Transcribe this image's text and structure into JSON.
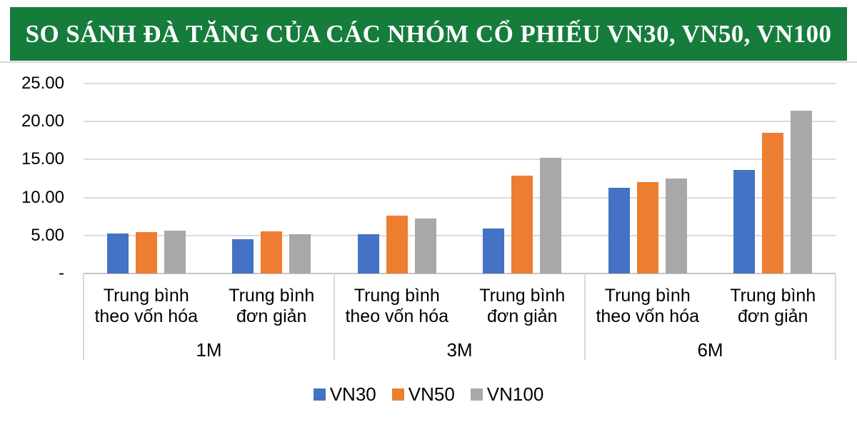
{
  "banner": {
    "title": "SO SÁNH ĐÀ TĂNG CỦA CÁC NHÓM CỔ PHIẾU VN30, VN50, VN100"
  },
  "chart_data": {
    "type": "bar",
    "title": "SO SÁNH ĐÀ TĂNG CỦA CÁC NHÓM CỔ PHIẾU VN30, VN50, VN100",
    "ylim": [
      0,
      25
    ],
    "ytick_labels": [
      "-",
      "5.00",
      "10.00",
      "15.00",
      "20.00",
      "25.00"
    ],
    "grid": true,
    "legend_position": "bottom",
    "period_labels": [
      "1M",
      "3M",
      "6M"
    ],
    "categories": [
      {
        "period": "1M",
        "label_lines": [
          "Trung bình",
          "theo vốn hóa"
        ]
      },
      {
        "period": "1M",
        "label_lines": [
          "Trung bình",
          "đơn giản"
        ]
      },
      {
        "period": "3M",
        "label_lines": [
          "Trung bình",
          "theo vốn hóa"
        ]
      },
      {
        "period": "3M",
        "label_lines": [
          "Trung bình",
          "đơn giản"
        ]
      },
      {
        "period": "6M",
        "label_lines": [
          "Trung bình",
          "theo vốn hóa"
        ]
      },
      {
        "period": "6M",
        "label_lines": [
          "Trung bình",
          "đơn giản"
        ]
      }
    ],
    "series": [
      {
        "name": "VN30",
        "color": "#4472C4",
        "values": [
          5.3,
          4.55,
          5.2,
          5.9,
          11.3,
          13.65
        ]
      },
      {
        "name": "VN50",
        "color": "#ED7D31",
        "values": [
          5.45,
          5.55,
          7.65,
          12.85,
          12.0,
          18.5
        ]
      },
      {
        "name": "VN100",
        "color": "#A8A8A8",
        "values": [
          5.6,
          5.2,
          7.25,
          15.25,
          12.5,
          21.45
        ]
      }
    ]
  },
  "colors": {
    "banner_bg": "#157C3B",
    "banner_text": "#FFFFFF",
    "banner_shadow": "#D6D6D6",
    "gridline": "#DBDBDB",
    "axis_line": "#C4C4C4",
    "divider": "#D9D9D9",
    "text": "#000000"
  }
}
